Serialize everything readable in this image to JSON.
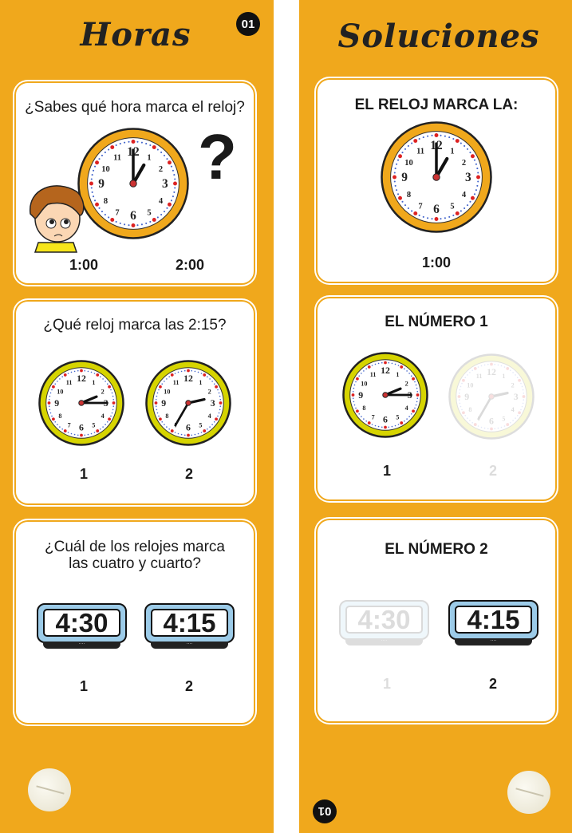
{
  "left": {
    "title": "Horas",
    "badge": "01",
    "q1": {
      "question": "¿Sabes qué hora marca el reloj?",
      "options": [
        "1:00",
        "2:00"
      ],
      "clock": {
        "hour": 1,
        "minute": 0,
        "rim": "#f0a81c"
      }
    },
    "q2": {
      "question": "¿Qué reloj marca las 2:15?",
      "options": [
        "1",
        "2"
      ],
      "clocks": [
        {
          "hour": 2,
          "minute": 15,
          "rim": "#d6d400"
        },
        {
          "hour": 2,
          "minute": 35,
          "rim": "#d6d400"
        }
      ]
    },
    "q3": {
      "question_line1": "¿Cuál de los relojes marca",
      "question_line2": "las cuatro y cuarto?",
      "options": [
        "1",
        "2"
      ],
      "digital": [
        "4:30",
        "4:15"
      ]
    }
  },
  "right": {
    "title": "Soluciones",
    "badge": "01",
    "s1": {
      "heading": "EL RELOJ MARCA LA:",
      "answer": "1:00",
      "clock": {
        "hour": 1,
        "minute": 0,
        "rim": "#f0a81c"
      }
    },
    "s2": {
      "heading": "EL NÚMERO 1",
      "options": [
        "1",
        "2"
      ],
      "clocks": [
        {
          "hour": 2,
          "minute": 15,
          "rim": "#d6d400"
        },
        {
          "hour": 2,
          "minute": 35,
          "rim": "#d6d400"
        }
      ]
    },
    "s3": {
      "heading": "EL NÚMERO 2",
      "options": [
        "1",
        "2"
      ],
      "digital": [
        "4:30",
        "4:15"
      ]
    }
  },
  "colors": {
    "card": "#f0a81c",
    "screen": "#9ccbe8"
  }
}
